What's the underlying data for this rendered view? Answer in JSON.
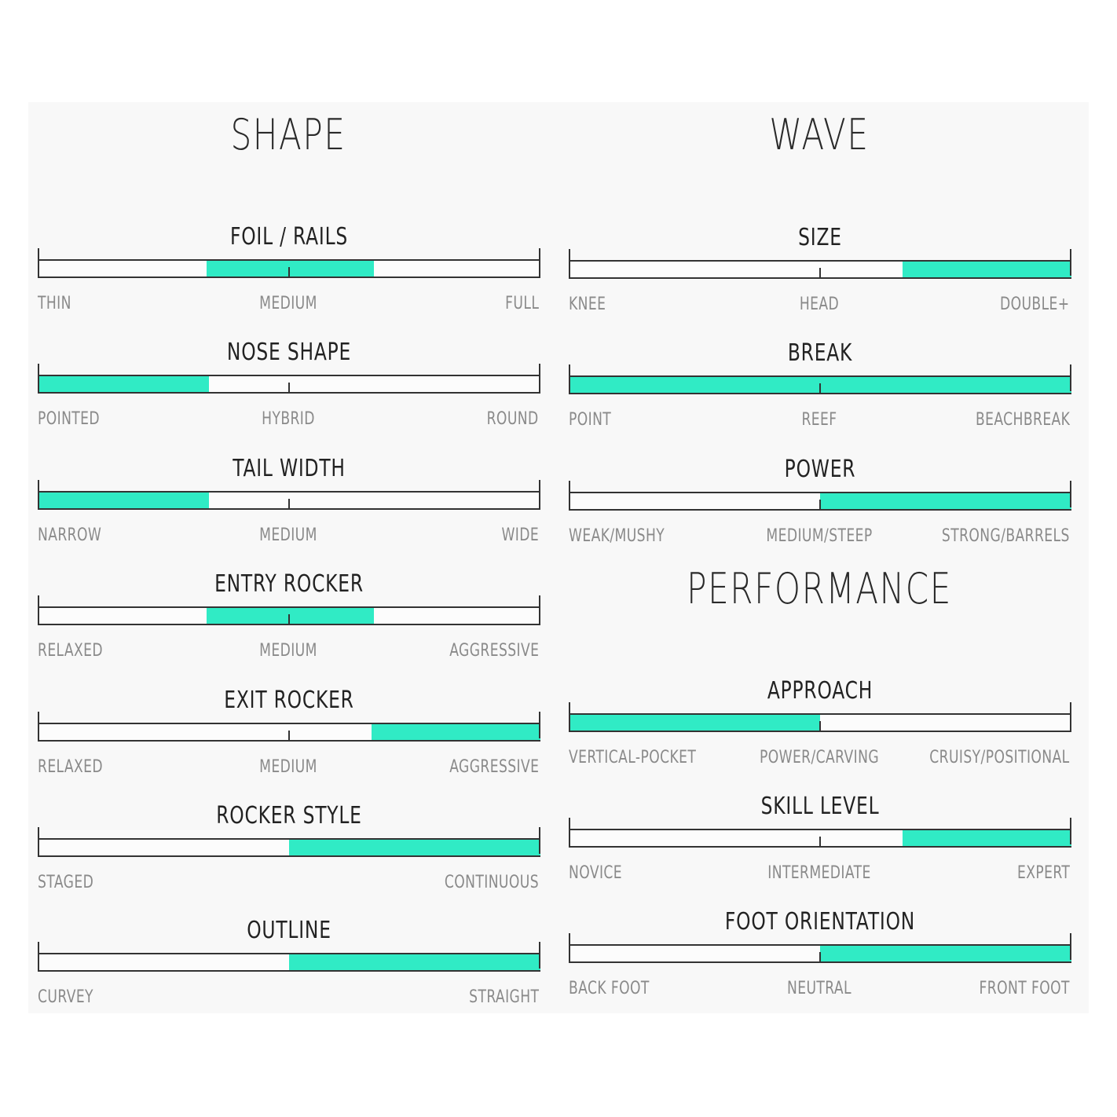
{
  "colors": {
    "fill": "#30ebc5",
    "border": "#333333",
    "label": "#8a8a8a"
  },
  "sections": {
    "shape": "SHAPE",
    "wave": "WAVE",
    "performance": "PERFORMANCE"
  },
  "metrics": {
    "foil_rails": {
      "title": "FOIL / RAILS",
      "range": [
        0.335,
        0.67
      ],
      "labels": [
        "THIN",
        "MEDIUM",
        "FULL"
      ]
    },
    "nose_shape": {
      "title": "NOSE SHAPE",
      "range": [
        0,
        0.34
      ],
      "labels": [
        "POINTED",
        "HYBRID",
        "ROUND"
      ]
    },
    "tail_width": {
      "title": "TAIL WIDTH",
      "range": [
        0,
        0.34
      ],
      "labels": [
        "NARROW",
        "MEDIUM",
        "WIDE"
      ]
    },
    "entry_rocker": {
      "title": "ENTRY ROCKER",
      "range": [
        0.335,
        0.67
      ],
      "labels": [
        "RELAXED",
        "MEDIUM",
        "AGGRESSIVE"
      ]
    },
    "exit_rocker": {
      "title": "EXIT ROCKER",
      "range": [
        0.665,
        1.0
      ],
      "labels": [
        "RELAXED",
        "MEDIUM",
        "AGGRESSIVE"
      ]
    },
    "rocker_style": {
      "title": "ROCKER STYLE",
      "range": [
        0.5,
        1.0
      ],
      "labels": [
        "STAGED",
        "CONTINUOUS"
      ]
    },
    "outline": {
      "title": "OUTLINE",
      "range": [
        0.5,
        1.0
      ],
      "labels": [
        "CURVEY",
        "STRAIGHT"
      ]
    },
    "size": {
      "title": "SIZE",
      "range": [
        0.665,
        1.0
      ],
      "labels": [
        "KNEE",
        "HEAD",
        "DOUBLE+"
      ]
    },
    "break": {
      "title": "BREAK",
      "range": [
        0,
        1.0
      ],
      "labels": [
        "POINT",
        "REEF",
        "BEACHBREAK"
      ]
    },
    "power": {
      "title": "POWER",
      "range": [
        0.5,
        1.0
      ],
      "labels": [
        "WEAK/MUSHY",
        "MEDIUM/STEEP",
        "STRONG/BARRELS"
      ]
    },
    "approach": {
      "title": "APPROACH",
      "range": [
        0,
        0.5
      ],
      "labels": [
        "VERTICAL-POCKET",
        "POWER/CARVING",
        "CRUISY/POSITIONAL"
      ]
    },
    "skill_level": {
      "title": "SKILL LEVEL",
      "range": [
        0.665,
        1.0
      ],
      "labels": [
        "NOVICE",
        "INTERMEDIATE",
        "EXPERT"
      ]
    },
    "foot_orientation": {
      "title": "FOOT ORIENTATION",
      "range": [
        0.5,
        1.0
      ],
      "labels": [
        "BACK FOOT",
        "NEUTRAL",
        "FRONT FOOT"
      ]
    }
  }
}
